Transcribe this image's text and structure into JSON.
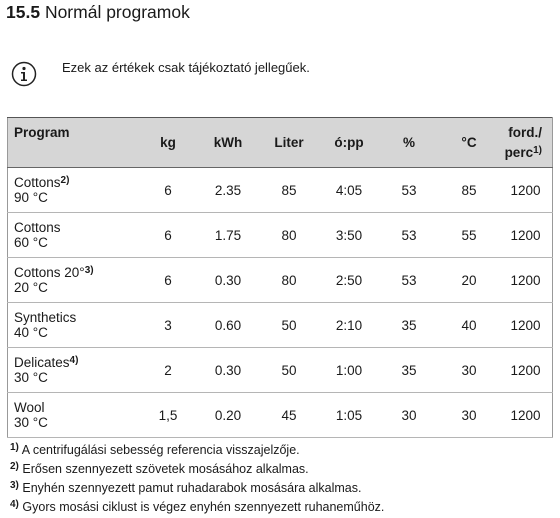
{
  "header": {
    "number": "15.5",
    "title": "Normál programok"
  },
  "info": "Ezek az értékek csak tájékoztató jellegűek.",
  "table": {
    "columns": [
      "Program",
      "kg",
      "kWh",
      "Liter",
      "ó:pp",
      "%",
      "°C"
    ],
    "speed_column": {
      "line1": "ford./",
      "line2": "perc",
      "note": "1)"
    },
    "rows": [
      {
        "name": "Cottons",
        "note": "2)",
        "temp": "90 °C",
        "cells": [
          "6",
          "2.35",
          "85",
          "4:05",
          "53",
          "85",
          "1200"
        ]
      },
      {
        "name": "Cottons",
        "note": null,
        "temp": "60 °C",
        "cells": [
          "6",
          "1.75",
          "80",
          "3:50",
          "53",
          "55",
          "1200"
        ]
      },
      {
        "name": "Cottons 20°",
        "note": "3)",
        "temp": "20 °C",
        "cells": [
          "6",
          "0.30",
          "80",
          "2:50",
          "53",
          "20",
          "1200"
        ]
      },
      {
        "name": "Synthetics",
        "note": null,
        "temp": "40 °C",
        "cells": [
          "3",
          "0.60",
          "50",
          "2:10",
          "35",
          "40",
          "1200"
        ]
      },
      {
        "name": "Delicates",
        "note": "4)",
        "temp": "30 °C",
        "cells": [
          "2",
          "0.30",
          "50",
          "1:00",
          "35",
          "30",
          "1200"
        ]
      },
      {
        "name": "Wool",
        "note": null,
        "temp": "30 °C",
        "cells": [
          "1,5",
          "0.20",
          "45",
          "1:05",
          "30",
          "30",
          "1200"
        ]
      }
    ]
  },
  "footnotes": [
    {
      "mark": "1)",
      "text": "A centrifugálási sebesség referencia visszajelzője."
    },
    {
      "mark": "2)",
      "text": "Erősen szennyezett szövetek mosásához alkalmas."
    },
    {
      "mark": "3)",
      "text": "Enyhén szennyezett pamut ruhadarabok mosására alkalmas."
    },
    {
      "mark": "4)",
      "text": "Gyors mosási ciklust is végez enyhén szennyezett ruhaneműhöz."
    }
  ]
}
